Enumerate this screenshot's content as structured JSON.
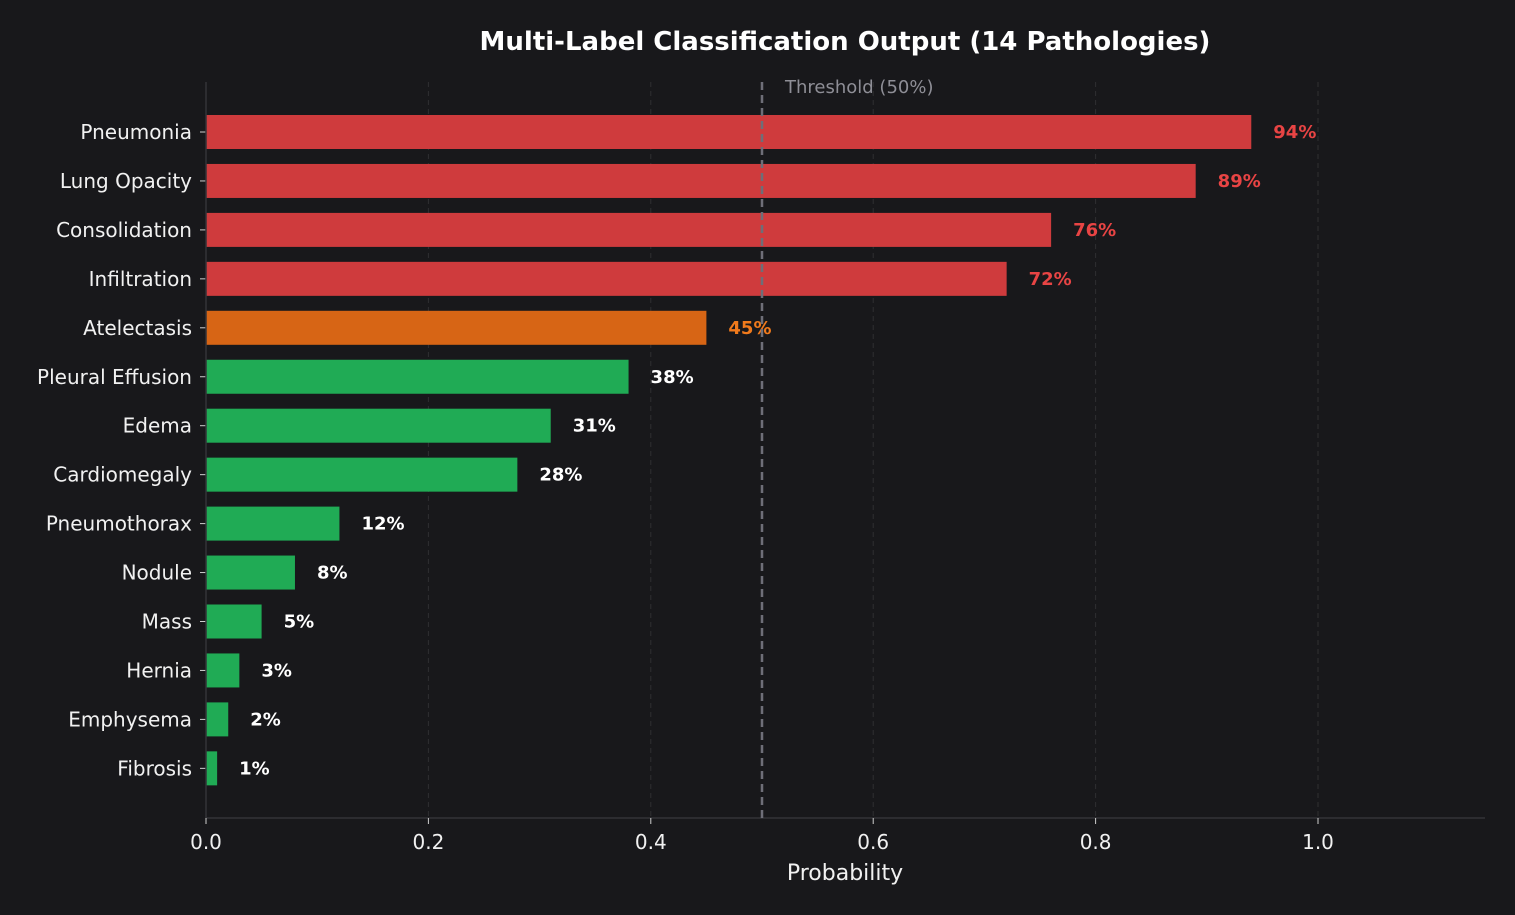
{
  "chart_data": {
    "type": "bar",
    "orientation": "horizontal",
    "title": "Multi-Label Classification Output (14 Pathologies)",
    "xlabel": "Probability",
    "ylabel": "",
    "xlim": [
      0,
      1.15
    ],
    "xticks": [
      0.0,
      0.2,
      0.4,
      0.6,
      0.8,
      1.0
    ],
    "xtick_labels": [
      "0.0",
      "0.2",
      "0.4",
      "0.6",
      "0.8",
      "1.0"
    ],
    "grid": "vertical, faint",
    "threshold": {
      "value": 0.5,
      "label": "Threshold (50%)"
    },
    "categories": [
      "Pneumonia",
      "Lung Opacity",
      "Consolidation",
      "Infiltration",
      "Atelectasis",
      "Pleural Effusion",
      "Edema",
      "Cardiomegaly",
      "Pneumothorax",
      "Nodule",
      "Mass",
      "Hernia",
      "Emphysema",
      "Fibrosis"
    ],
    "values": [
      0.94,
      0.89,
      0.76,
      0.72,
      0.45,
      0.38,
      0.31,
      0.28,
      0.12,
      0.08,
      0.05,
      0.03,
      0.02,
      0.01
    ],
    "value_labels": [
      "94%",
      "89%",
      "76%",
      "72%",
      "45%",
      "38%",
      "31%",
      "28%",
      "12%",
      "8%",
      "5%",
      "3%",
      "2%",
      "1%"
    ],
    "colors": {
      "high": "#cf3b3d",
      "medium": "#d76515",
      "low": "#20ab55",
      "high_text": "#e84444",
      "medium_text": "#f07a1c",
      "low_text": "#ffffff",
      "threshold_line": "#6e6e78"
    },
    "color_levels": [
      "high",
      "high",
      "high",
      "high",
      "medium",
      "low",
      "low",
      "low",
      "low",
      "low",
      "low",
      "low",
      "low",
      "low"
    ]
  }
}
